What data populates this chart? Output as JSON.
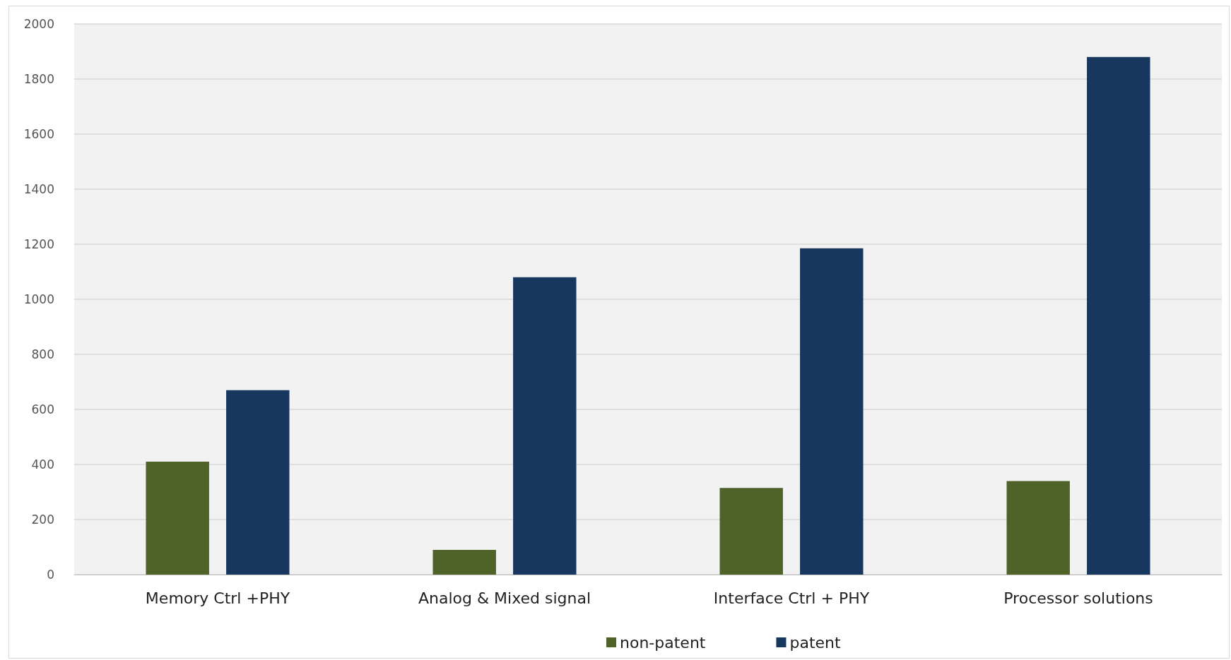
{
  "chart_data": {
    "type": "bar",
    "categories": [
      "Memory Ctrl +PHY",
      "Analog & Mixed signal",
      "Interface Ctrl + PHY",
      "Processor solutions"
    ],
    "series": [
      {
        "name": "non-patent",
        "color": "#4f6228",
        "values": [
          410,
          90,
          315,
          340
        ]
      },
      {
        "name": "patent",
        "color": "#17375e",
        "values": [
          670,
          1080,
          1185,
          1880
        ]
      }
    ],
    "ylim": [
      0,
      2000
    ],
    "yticks": [
      0,
      200,
      400,
      600,
      800,
      1000,
      1200,
      1400,
      1600,
      1800,
      2000
    ],
    "grid": "y",
    "legend": "bottom"
  }
}
